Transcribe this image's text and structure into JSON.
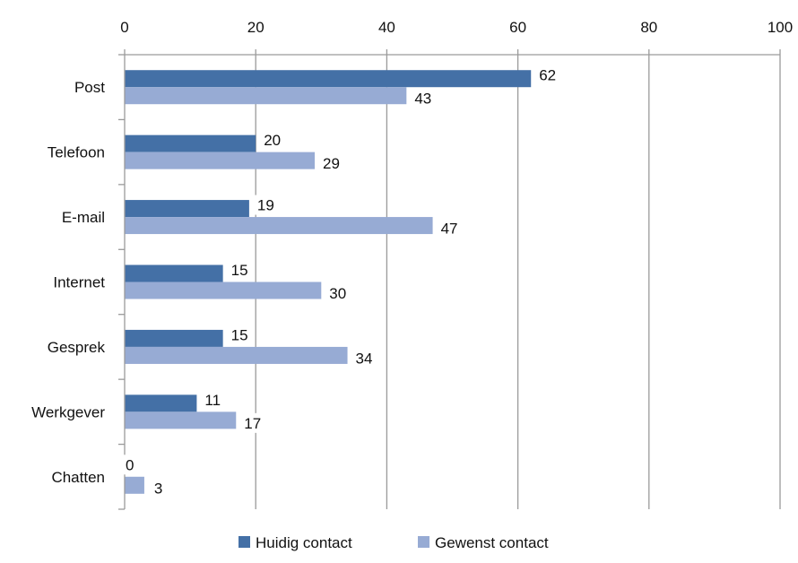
{
  "chart_data": {
    "type": "bar",
    "orientation": "horizontal",
    "categories": [
      "Post",
      "Telefoon",
      "E-mail",
      "Internet",
      "Gesprek",
      "Werkgever",
      "Chatten"
    ],
    "series": [
      {
        "name": "Huidig contact",
        "values": [
          62,
          20,
          19,
          15,
          15,
          11,
          0
        ],
        "color": "#4470A6"
      },
      {
        "name": "Gewenst contact",
        "values": [
          43,
          29,
          47,
          30,
          34,
          17,
          3
        ],
        "color": "#97ABD4"
      }
    ],
    "xlim": [
      0,
      100
    ],
    "x_ticks": [
      0,
      20,
      40,
      60,
      80,
      100
    ],
    "x_axis_position": "top",
    "grid": true,
    "gridline_color": "#9A9A9A",
    "legend_position": "bottom",
    "data_labels": true,
    "title": "",
    "xlabel": "",
    "ylabel": ""
  }
}
